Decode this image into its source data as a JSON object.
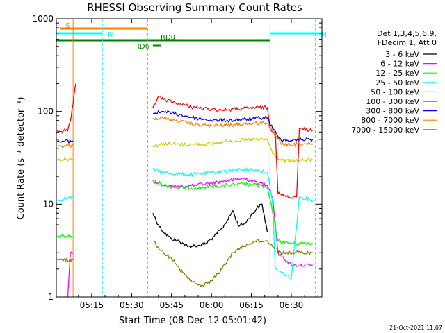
{
  "chart_data": {
    "type": "line",
    "title": "RHESSI Observing Summary Count Rates",
    "xlabel": "Start Time (08-Dec-12 05:01:42)",
    "ylabel": "Count Rate (s⁻¹ detector⁻¹)",
    "y_scale": "log",
    "xlim": [
      "05:01:42",
      "06:41:30"
    ],
    "ylim": [
      1,
      1000
    ],
    "x_ticks": [
      "05:15",
      "05:30",
      "05:45",
      "06:00",
      "06:15",
      "06:30"
    ],
    "y_ticks": [
      "1",
      "10",
      "100",
      "1000"
    ],
    "legend_header": [
      "Det 1,3,4,5,6,9,",
      "FDecim 1, Att 0"
    ],
    "legend_position": "right",
    "timestamp": "21-Oct-2021 11:07",
    "flags": [
      {
        "label": "S",
        "start": "05:03",
        "end": "05:36",
        "color": "#ff8000",
        "level": "top"
      },
      {
        "label": "N",
        "start": "05:01:42",
        "end": "05:19",
        "color": "#00ffff",
        "level": "mid"
      },
      {
        "label": "N",
        "start": "06:22",
        "end": "06:41:30",
        "color": "#00ffff",
        "level": "mid"
      },
      {
        "label": "RD0",
        "start": "05:01:42",
        "end": "06:22",
        "color": "#008000",
        "level": "low"
      },
      {
        "label": "RD6",
        "start": "05:38",
        "end": "05:41",
        "color": "#008000",
        "level": "lower"
      }
    ],
    "segment_lines": [
      {
        "time": "05:08",
        "color": "#ff8000",
        "style": "solid"
      },
      {
        "time": "05:19",
        "color": "#00ffff",
        "style": "dashed"
      },
      {
        "time": "05:36",
        "color": "#ff8000",
        "style": "dashed"
      },
      {
        "time": "06:22",
        "color": "#00ffff",
        "style": "solid"
      },
      {
        "time": "06:39",
        "color": "#00ffff",
        "style": "dashed"
      }
    ],
    "series": [
      {
        "name": "3 - 6 keV",
        "color": "#000000",
        "points": [
          [
            "05:38",
            8
          ],
          [
            "05:40",
            6
          ],
          [
            "05:42",
            5
          ],
          [
            "05:45",
            4.2
          ],
          [
            "05:48",
            4
          ],
          [
            "05:51",
            3.5
          ],
          [
            "05:55",
            3.6
          ],
          [
            "05:58",
            3.8
          ],
          [
            "06:01",
            4.5
          ],
          [
            "06:04",
            5.5
          ],
          [
            "06:07",
            7.5
          ],
          [
            "06:08",
            8.5
          ],
          [
            "06:10",
            6
          ],
          [
            "06:12",
            6
          ],
          [
            "06:14",
            7
          ],
          [
            "06:17",
            9
          ],
          [
            "06:19",
            10
          ],
          [
            "06:21",
            5
          ]
        ]
      },
      {
        "name": "6 - 12 keV",
        "color": "#ff00ff",
        "points": [
          [
            "05:06",
            1
          ],
          [
            "05:07",
            3
          ],
          [
            "05:08",
            3
          ],
          [
            "05:38",
            18
          ],
          [
            "05:42",
            16
          ],
          [
            "05:48",
            15.5
          ],
          [
            "05:54",
            16
          ],
          [
            "06:00",
            17
          ],
          [
            "06:06",
            18
          ],
          [
            "06:12",
            19
          ],
          [
            "06:18",
            17
          ],
          [
            "06:21",
            16
          ],
          [
            "06:23",
            12
          ],
          [
            "06:25",
            3
          ],
          [
            "06:30",
            2.2
          ],
          [
            "06:38",
            2.2
          ]
        ]
      },
      {
        "name": "12 - 25 keV",
        "color": "#00ff00",
        "points": [
          [
            "05:02",
            4.5
          ],
          [
            "05:08",
            4.5
          ],
          [
            "05:38",
            18
          ],
          [
            "05:42",
            16
          ],
          [
            "05:48",
            15
          ],
          [
            "05:54",
            15
          ],
          [
            "06:00",
            15.5
          ],
          [
            "06:06",
            16
          ],
          [
            "06:12",
            16.5
          ],
          [
            "06:18",
            16
          ],
          [
            "06:21",
            15
          ],
          [
            "06:23",
            8
          ],
          [
            "06:25",
            4
          ],
          [
            "06:30",
            3.8
          ],
          [
            "06:38",
            3.8
          ]
        ]
      },
      {
        "name": "25 - 50 keV",
        "color": "#00ffff",
        "points": [
          [
            "05:02",
            11
          ],
          [
            "05:08",
            12
          ],
          [
            "05:38",
            24
          ],
          [
            "05:42",
            22
          ],
          [
            "05:48",
            21
          ],
          [
            "05:54",
            21
          ],
          [
            "06:00",
            22
          ],
          [
            "06:06",
            23
          ],
          [
            "06:12",
            24
          ],
          [
            "06:18",
            23
          ],
          [
            "06:21",
            22
          ],
          [
            "06:23",
            10
          ],
          [
            "06:24",
            2
          ],
          [
            "06:30",
            1.6
          ],
          [
            "06:33",
            12
          ],
          [
            "06:38",
            11
          ]
        ]
      },
      {
        "name": "50 - 100 keV",
        "color": "#cccc00",
        "points": [
          [
            "05:02",
            30
          ],
          [
            "05:08",
            31
          ],
          [
            "05:38",
            42
          ],
          [
            "05:42",
            45
          ],
          [
            "05:48",
            44
          ],
          [
            "05:54",
            44
          ],
          [
            "06:00",
            45
          ],
          [
            "06:06",
            48
          ],
          [
            "06:12",
            49
          ],
          [
            "06:18",
            50
          ],
          [
            "06:21",
            50
          ],
          [
            "06:23",
            35
          ],
          [
            "06:26",
            30
          ],
          [
            "06:30",
            29
          ],
          [
            "06:33",
            30
          ],
          [
            "06:38",
            30
          ]
        ]
      },
      {
        "name": "100 - 300 keV",
        "color": "#ff0000",
        "points": [
          [
            "05:02",
            62
          ],
          [
            "05:06",
            62
          ],
          [
            "05:07",
            80
          ],
          [
            "05:08",
            120
          ],
          [
            "05:09",
            200
          ],
          [
            "05:38",
            110
          ],
          [
            "05:40",
            145
          ],
          [
            "05:42",
            135
          ],
          [
            "05:48",
            120
          ],
          [
            "05:54",
            110
          ],
          [
            "06:00",
            105
          ],
          [
            "06:06",
            104
          ],
          [
            "06:12",
            108
          ],
          [
            "06:18",
            110
          ],
          [
            "06:21",
            110
          ],
          [
            "06:22",
            65
          ],
          [
            "06:24",
            60
          ],
          [
            "06:25",
            13
          ],
          [
            "06:28",
            12
          ],
          [
            "06:32",
            12
          ],
          [
            "06:33",
            65
          ],
          [
            "06:38",
            63
          ]
        ]
      },
      {
        "name": "300 - 800 keV",
        "color": "#0000ff",
        "points": [
          [
            "05:02",
            47
          ],
          [
            "05:08",
            48
          ],
          [
            "05:38",
            95
          ],
          [
            "05:42",
            100
          ],
          [
            "05:48",
            92
          ],
          [
            "05:54",
            85
          ],
          [
            "06:00",
            80
          ],
          [
            "06:06",
            80
          ],
          [
            "06:12",
            82
          ],
          [
            "06:18",
            85
          ],
          [
            "06:21",
            85
          ],
          [
            "06:23",
            65
          ],
          [
            "06:26",
            50
          ],
          [
            "06:30",
            48
          ],
          [
            "06:33",
            50
          ],
          [
            "06:38",
            50
          ]
        ]
      },
      {
        "name": "800 - 7000 keV",
        "color": "#ff8000",
        "points": [
          [
            "05:02",
            42
          ],
          [
            "05:08",
            43
          ],
          [
            "05:38",
            85
          ],
          [
            "05:42",
            84
          ],
          [
            "05:48",
            78
          ],
          [
            "05:54",
            72
          ],
          [
            "06:00",
            70
          ],
          [
            "06:06",
            71
          ],
          [
            "06:12",
            73
          ],
          [
            "06:18",
            75
          ],
          [
            "06:21",
            75
          ],
          [
            "06:23",
            60
          ],
          [
            "06:26",
            45
          ],
          [
            "06:30",
            43
          ],
          [
            "06:33",
            45
          ],
          [
            "06:38",
            44
          ]
        ]
      },
      {
        "name": "7000 - 15000 keV",
        "color": "#808000",
        "points": [
          [
            "05:02",
            2.5
          ],
          [
            "05:08",
            2.5
          ],
          [
            "05:38",
            4
          ],
          [
            "05:42",
            3
          ],
          [
            "05:46",
            2.5
          ],
          [
            "05:48",
            2
          ],
          [
            "05:52",
            1.5
          ],
          [
            "05:56",
            1.3
          ],
          [
            "06:00",
            1.5
          ],
          [
            "06:04",
            2
          ],
          [
            "06:08",
            3
          ],
          [
            "06:12",
            3.5
          ],
          [
            "06:16",
            4
          ],
          [
            "06:21",
            4
          ],
          [
            "06:26",
            3
          ],
          [
            "06:38",
            3
          ]
        ]
      }
    ]
  }
}
